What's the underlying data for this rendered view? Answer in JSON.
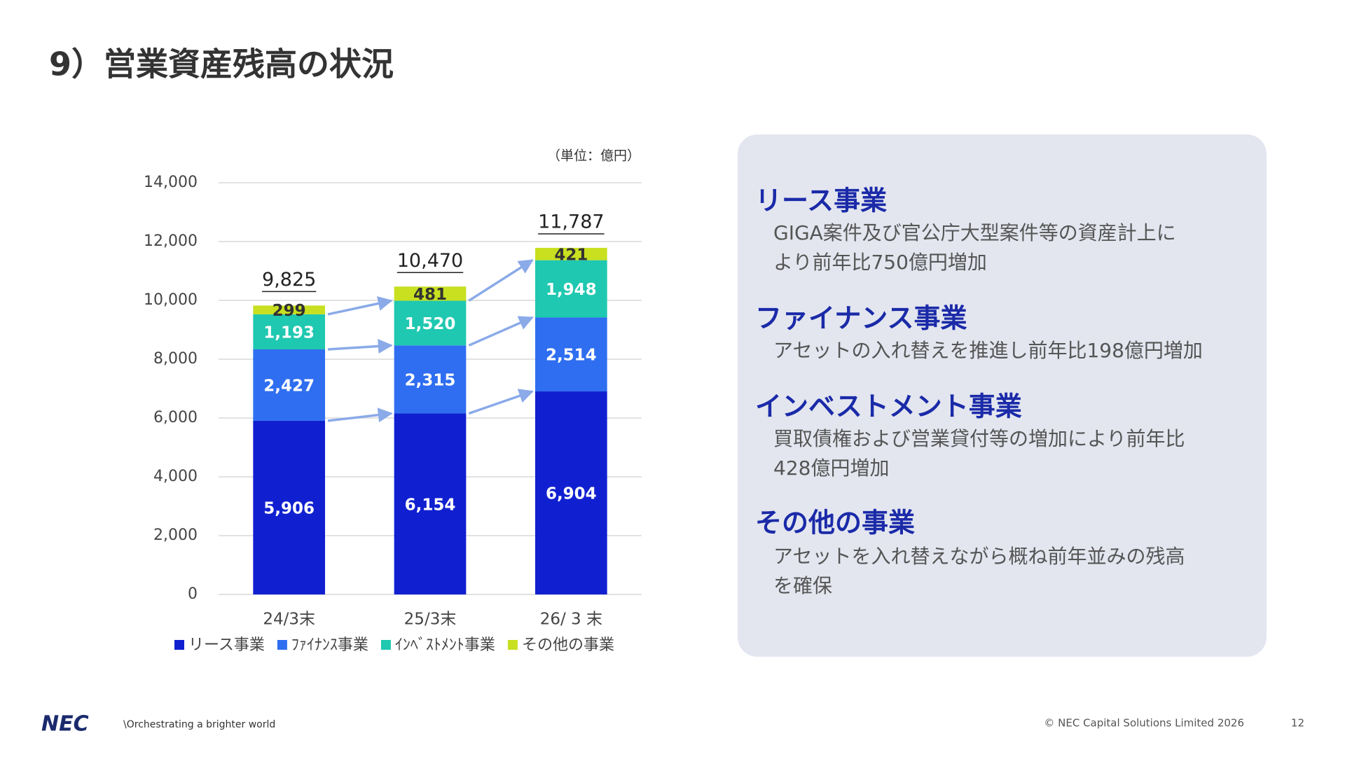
{
  "title": "9）営業資産残高の状況",
  "chart_data": {
    "type": "bar",
    "stacked": true,
    "unit": "（単位：億円）",
    "categories": [
      "24/3末",
      "25/3末",
      "26/ 3 末"
    ],
    "series": [
      {
        "name": "リース事業",
        "color": "#1020d0",
        "label_color": "#ffffff",
        "values": [
          5906,
          6154,
          6904
        ],
        "value_labels": [
          "5,906",
          "6,154",
          "6,904"
        ]
      },
      {
        "name": "ﾌｧｲﾅﾝｽ事業",
        "color": "#2f6ef0",
        "label_color": "#ffffff",
        "values": [
          2427,
          2315,
          2514
        ],
        "value_labels": [
          "2,427",
          "2,315",
          "2,514"
        ]
      },
      {
        "name": "ｲﾝﾍﾞｽﾄﾒﾝﾄ事業",
        "color": "#1fc8b0",
        "label_color": "#ffffff",
        "values": [
          1193,
          1520,
          1948
        ],
        "value_labels": [
          "1,193",
          "1,520",
          "1,948"
        ]
      },
      {
        "name": "その他の事業",
        "color": "#c8e020",
        "label_color": "#333333",
        "values": [
          299,
          481,
          421
        ],
        "value_labels": [
          "299",
          "481",
          "421"
        ]
      }
    ],
    "totals": [
      9825,
      10470,
      11787
    ],
    "total_labels": [
      "9,825",
      "10,470",
      "11,787"
    ],
    "ylim": [
      0,
      14000
    ],
    "yticks": [
      0,
      {
        "value": 2000,
        "label": "2,000"
      },
      {
        "value": 4000,
        "label": "4,000"
      },
      {
        "value": 6000,
        "label": "6,000"
      },
      {
        "value": 8000,
        "label": "8,000"
      },
      {
        "value": 10000,
        "label": "10,000"
      },
      {
        "value": 12000,
        "label": "12,000"
      },
      {
        "value": 14000,
        "label": "14,000"
      }
    ],
    "grid": true,
    "legend": "bottom"
  },
  "panel": {
    "sections": [
      {
        "heading": "リース事業",
        "lines": [
          "GIGA案件及び官公庁大型案件等の資産計上に",
          "より前年比750億円増加"
        ]
      },
      {
        "heading": "ファイナンス事業",
        "lines": [
          "アセットの入れ替えを推進し前年比198億円増加"
        ]
      },
      {
        "heading": "インベストメント事業",
        "lines": [
          "買取債権および営業貸付等の増加により前年比",
          "428億円増加"
        ]
      },
      {
        "heading": "その他の事業",
        "lines": [
          "アセットを入れ替えながら概ね前年並みの残高",
          "を確保"
        ]
      }
    ]
  },
  "footer": {
    "logo": "NEC",
    "tagline": "\\Orchestrating a brighter world",
    "copyright": "© NEC Capital Solutions Limited 2026",
    "page": "12"
  }
}
